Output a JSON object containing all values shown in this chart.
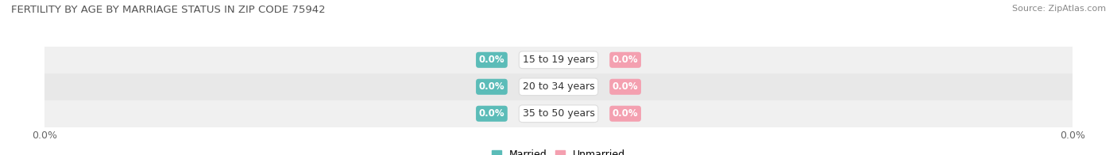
{
  "title": "FERTILITY BY AGE BY MARRIAGE STATUS IN ZIP CODE 75942",
  "source": "Source: ZipAtlas.com",
  "categories": [
    "15 to 19 years",
    "20 to 34 years",
    "35 to 50 years"
  ],
  "married_values": [
    0.0,
    0.0,
    0.0
  ],
  "unmarried_values": [
    0.0,
    0.0,
    0.0
  ],
  "married_color": "#5bbcb8",
  "unmarried_color": "#f4a0b0",
  "title_color": "#555555",
  "source_color": "#888888",
  "tick_color": "#666666",
  "label_color": "#333333",
  "row_colors": [
    "#f0f0f0",
    "#e8e8e8",
    "#f0f0f0"
  ],
  "xlim": [
    -1.0,
    1.0
  ],
  "figsize": [
    14.06,
    1.96
  ],
  "dpi": 100
}
